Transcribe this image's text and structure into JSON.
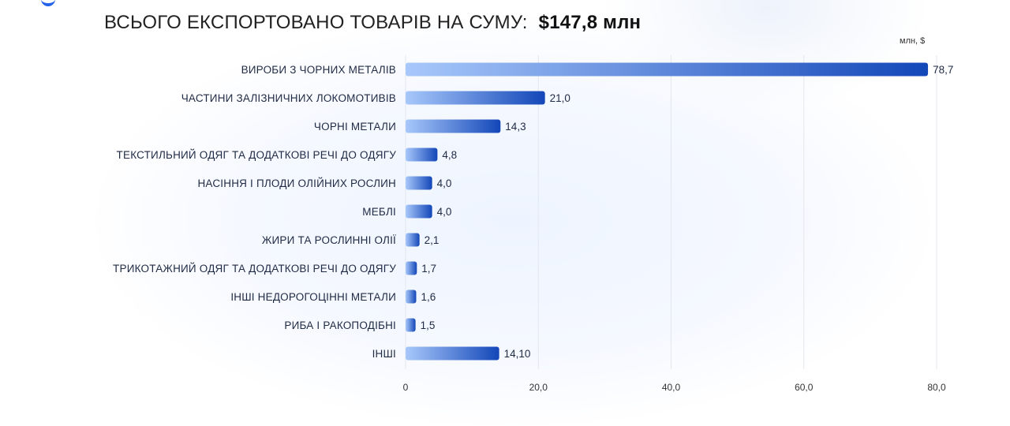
{
  "header": {
    "title": "ВСЬОГО ЕКСПОРТОВАНО ТОВАРІВ НА СУМУ:",
    "total": "$147,8 млн",
    "unit": "млн, $"
  },
  "colors": {
    "bar_start": "#a8c8fb",
    "bar_end": "#1347b8",
    "grid": "#e3e7ee"
  },
  "chart_data": {
    "type": "bar",
    "orientation": "horizontal",
    "categories": [
      "ВИРОБИ З ЧОРНИХ МЕТАЛІВ",
      "ЧАСТИНИ ЗАЛІЗНИЧНИХ ЛОКОМОТИВІВ",
      "ЧОРНІ МЕТАЛИ",
      "ТЕКСТИЛЬНИЙ ОДЯГ ТА ДОДАТКОВІ РЕЧІ ДО ОДЯГУ",
      "НАСІННЯ І ПЛОДИ ОЛІЙНИХ РОСЛИН",
      "МЕБЛІ",
      "ЖИРИ ТА РОСЛИННІ ОЛІЇ",
      "ТРИКОТАЖНИЙ ОДЯГ ТА ДОДАТКОВІ РЕЧІ ДО ОДЯГУ",
      "ІНШІ НЕДОРОГОЦІННІ МЕТАЛИ",
      "РИБА І РАКОПОДІБНІ",
      "ІНШІ"
    ],
    "values": [
      78.7,
      21.0,
      14.3,
      4.8,
      4.0,
      4.0,
      2.1,
      1.7,
      1.6,
      1.5,
      14.1
    ],
    "value_labels": [
      "78,7",
      "21,0",
      "14,3",
      "4,8",
      "4,0",
      "4,0",
      "2,1",
      "1,7",
      "1,6",
      "1,5",
      "14,10"
    ],
    "xlim": [
      0,
      80
    ],
    "xticks": [
      0,
      20,
      40,
      60,
      80
    ],
    "xtick_labels": [
      "0",
      "20,0",
      "40,0",
      "60,0",
      "80,0"
    ],
    "xlabel": "",
    "ylabel": "",
    "grid": true
  }
}
